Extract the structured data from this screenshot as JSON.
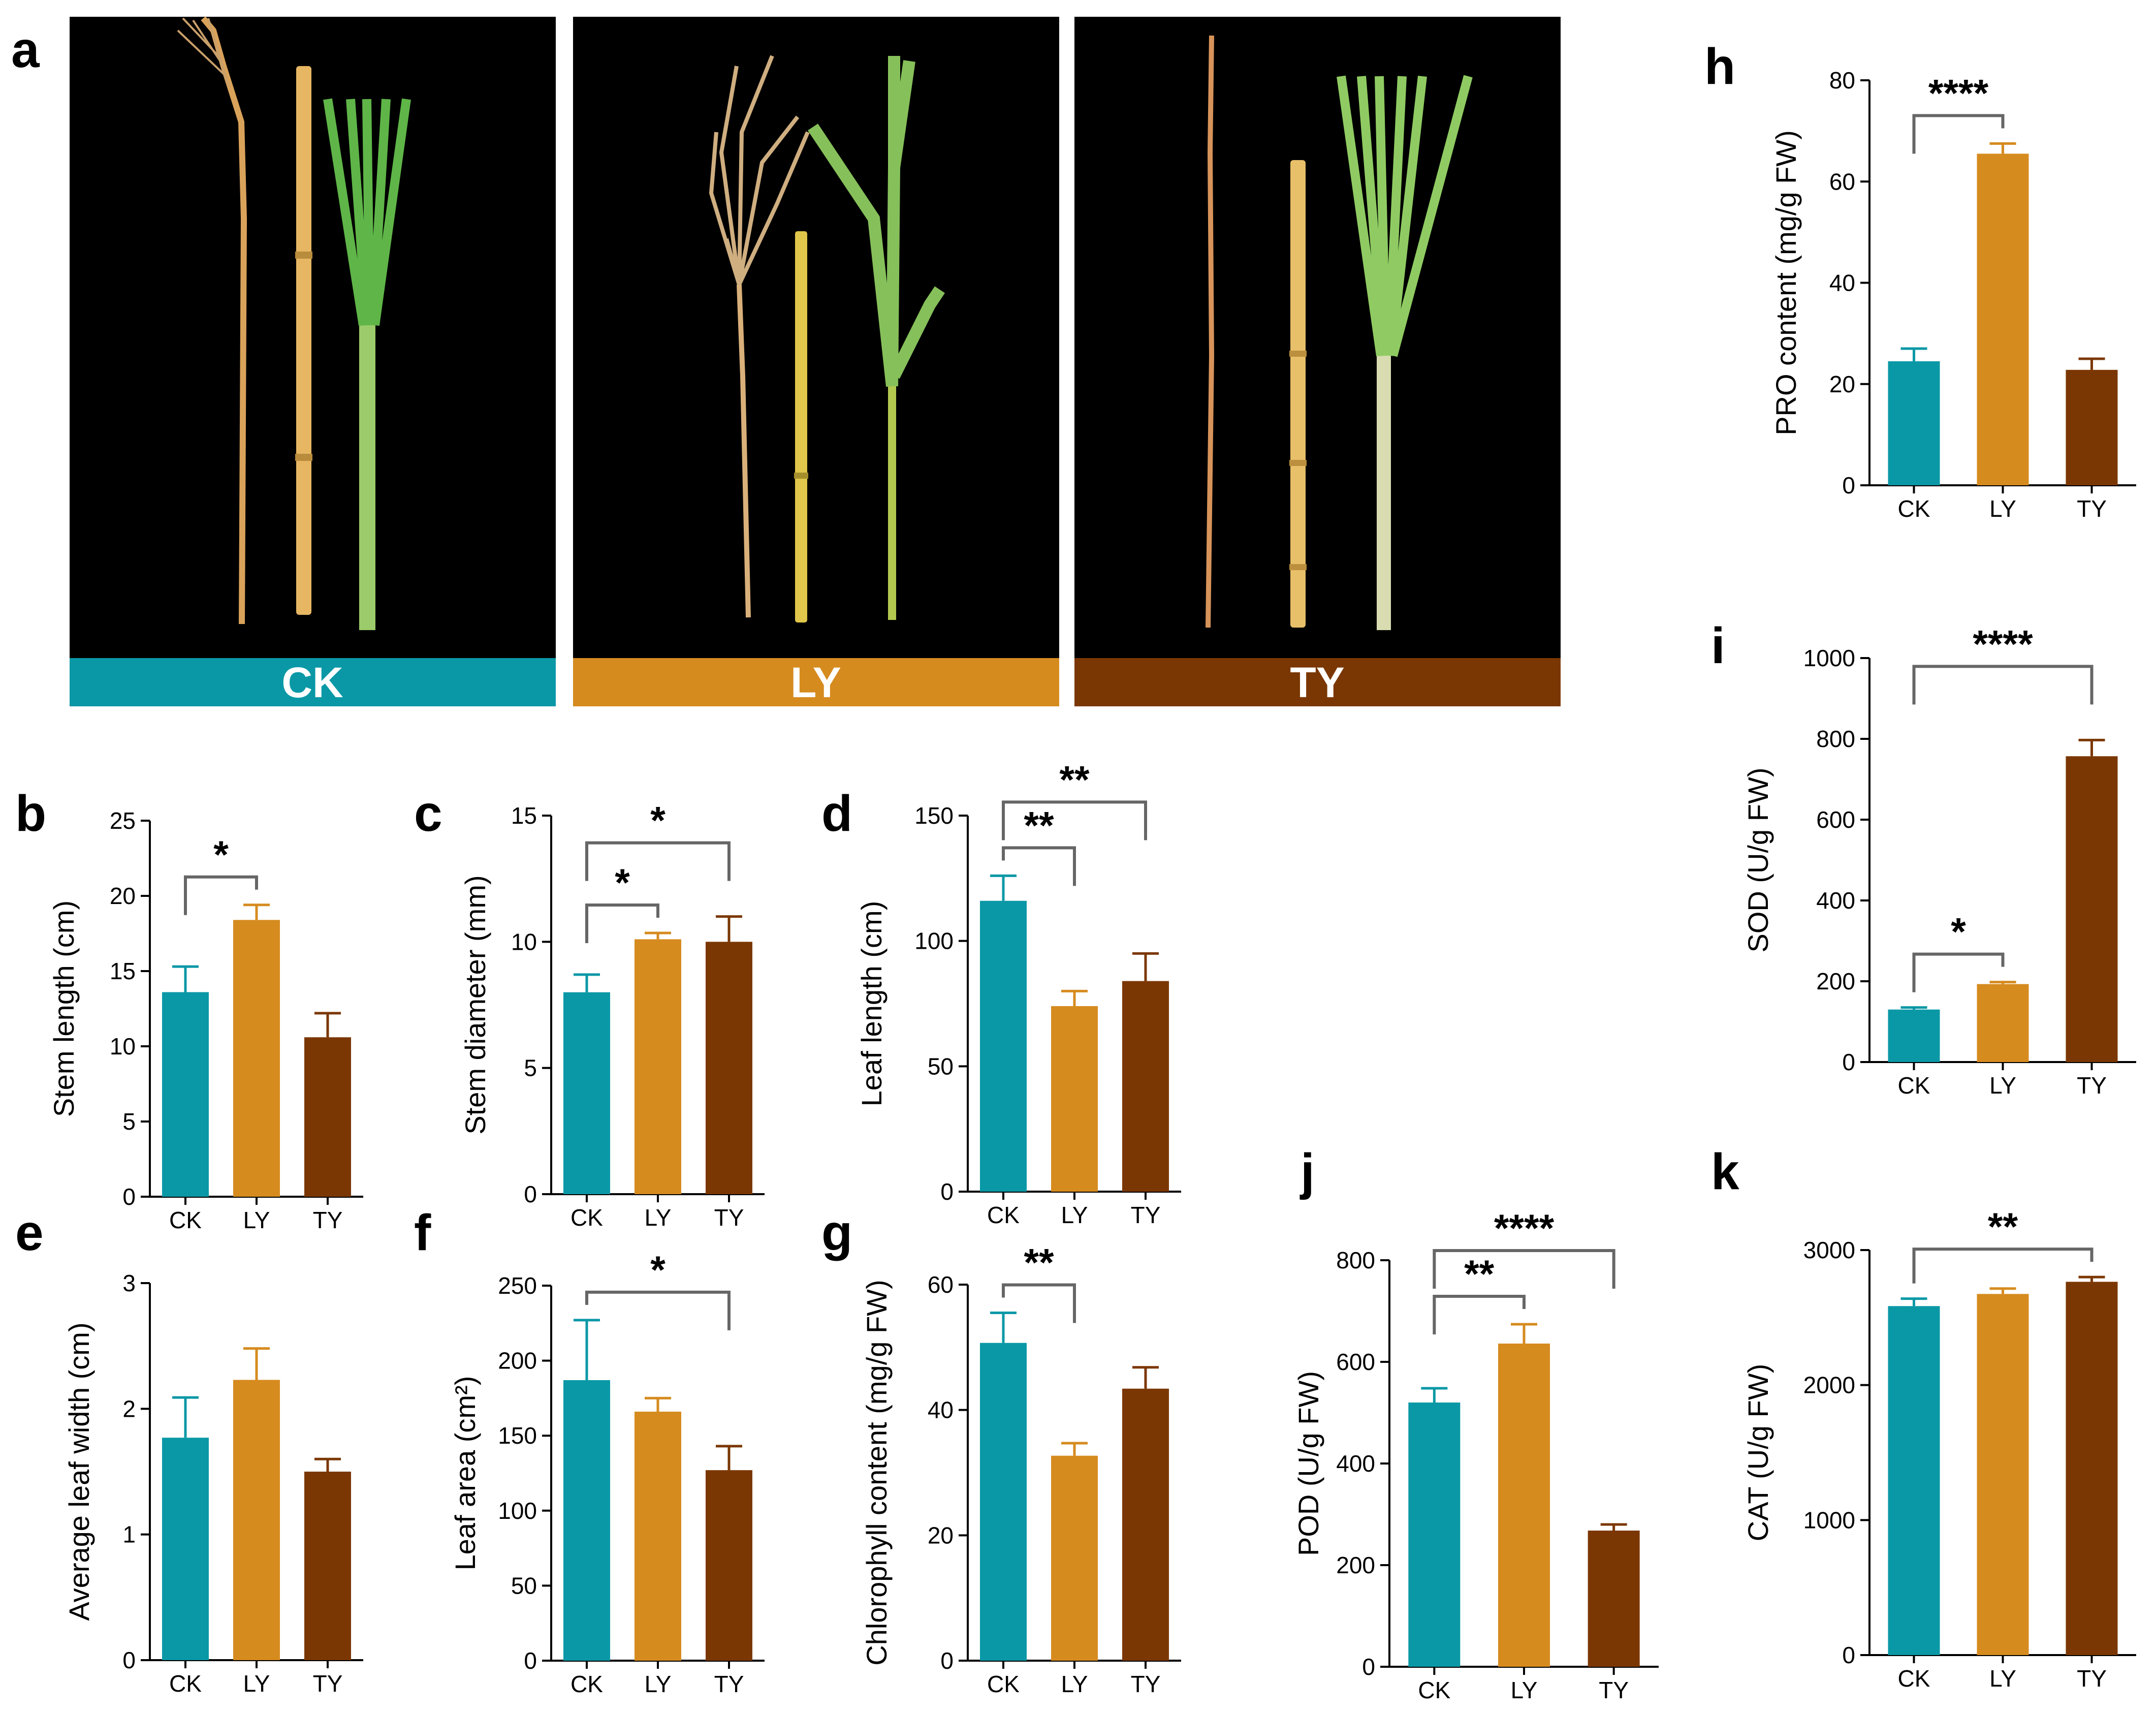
{
  "colors": {
    "CK": "#0a98a6",
    "LY": "#d68b1f",
    "TY": "#7b3703",
    "photo_bg": "#000000"
  },
  "panel_a": {
    "label": "a",
    "photos": [
      {
        "group": "CK",
        "color": "#0a98a6"
      },
      {
        "group": "LY",
        "color": "#d68b1f"
      },
      {
        "group": "TY",
        "color": "#7b3703"
      }
    ]
  },
  "chart_data": [
    {
      "panel": "b",
      "type": "bar",
      "title": "",
      "xlabel": "",
      "ylabel": "Stem length  (cm)",
      "ylim": [
        0,
        25
      ],
      "yticks": [
        0,
        5,
        10,
        15,
        20,
        25
      ],
      "categories": [
        "CK",
        "LY",
        "TY"
      ],
      "values": [
        13.6,
        18.4,
        10.6
      ],
      "errors": [
        1.7,
        1.0,
        1.6
      ],
      "significance": [
        {
          "from": 0,
          "to": 1,
          "label": "*"
        }
      ]
    },
    {
      "panel": "c",
      "type": "bar",
      "title": "",
      "xlabel": "",
      "ylabel": "Stem diameter  (mm)",
      "ylim": [
        0,
        15
      ],
      "yticks": [
        0,
        5,
        10,
        15
      ],
      "categories": [
        "CK",
        "LY",
        "TY"
      ],
      "values": [
        8.0,
        10.1,
        10.0
      ],
      "errors": [
        0.7,
        0.25,
        1.0
      ],
      "significance": [
        {
          "from": 0,
          "to": 1,
          "label": "*"
        },
        {
          "from": 0,
          "to": 2,
          "label": "*"
        }
      ]
    },
    {
      "panel": "d",
      "type": "bar",
      "title": "",
      "xlabel": "",
      "ylabel": "Leaf length (cm)",
      "ylim": [
        0,
        150
      ],
      "yticks": [
        0,
        50,
        100,
        150
      ],
      "categories": [
        "CK",
        "LY",
        "TY"
      ],
      "values": [
        116,
        74,
        84
      ],
      "errors": [
        10,
        6,
        11
      ],
      "significance": [
        {
          "from": 0,
          "to": 1,
          "label": "**"
        },
        {
          "from": 0,
          "to": 2,
          "label": "**"
        }
      ]
    },
    {
      "panel": "e",
      "type": "bar",
      "title": "",
      "xlabel": "",
      "ylabel": "Average leaf width (cm)",
      "ylim": [
        0,
        3
      ],
      "yticks": [
        0,
        1,
        2,
        3
      ],
      "categories": [
        "CK",
        "LY",
        "TY"
      ],
      "values": [
        1.77,
        2.23,
        1.5
      ],
      "errors": [
        0.32,
        0.25,
        0.1
      ],
      "significance": []
    },
    {
      "panel": "f",
      "type": "bar",
      "title": "",
      "xlabel": "",
      "ylabel": "Leaf area (cm²)",
      "ylim": [
        0,
        250
      ],
      "yticks": [
        0,
        50,
        100,
        150,
        200,
        250
      ],
      "categories": [
        "CK",
        "LY",
        "TY"
      ],
      "values": [
        187,
        166,
        127
      ],
      "errors": [
        40,
        9,
        16
      ],
      "significance": [
        {
          "from": 0,
          "to": 2,
          "label": "*"
        }
      ]
    },
    {
      "panel": "g",
      "type": "bar",
      "title": "",
      "xlabel": "",
      "ylabel": "Chlorophyll content  (mg/g FW)",
      "ylim": [
        0,
        60
      ],
      "yticks": [
        0,
        20,
        40,
        60
      ],
      "categories": [
        "CK",
        "LY",
        "TY"
      ],
      "values": [
        50.7,
        32.7,
        43.4
      ],
      "errors": [
        4.8,
        2.0,
        3.4
      ],
      "significance": [
        {
          "from": 0,
          "to": 1,
          "label": "**"
        }
      ]
    },
    {
      "panel": "h",
      "type": "bar",
      "title": "",
      "xlabel": "",
      "ylabel": "PRO content (mg/g FW)",
      "ylim": [
        0,
        80
      ],
      "yticks": [
        0,
        20,
        40,
        60,
        80
      ],
      "categories": [
        "CK",
        "LY",
        "TY"
      ],
      "values": [
        24.5,
        65.5,
        22.8
      ],
      "errors": [
        2.5,
        2.0,
        2.2
      ],
      "significance": [
        {
          "from": 0,
          "to": 1,
          "label": "****"
        }
      ]
    },
    {
      "panel": "i",
      "type": "bar",
      "title": "",
      "xlabel": "",
      "ylabel": "SOD (U/g FW)",
      "ylim": [
        0,
        1000
      ],
      "yticks": [
        0,
        200,
        400,
        600,
        800,
        1000
      ],
      "categories": [
        "CK",
        "LY",
        "TY"
      ],
      "values": [
        130,
        193,
        757
      ],
      "errors": [
        5,
        5,
        40
      ],
      "significance": [
        {
          "from": 0,
          "to": 1,
          "label": "*"
        },
        {
          "from": 0,
          "to": 2,
          "label": "****"
        }
      ]
    },
    {
      "panel": "j",
      "type": "bar",
      "title": "",
      "xlabel": "",
      "ylabel": "POD (U/g FW)",
      "ylim": [
        0,
        800
      ],
      "yticks": [
        0,
        200,
        400,
        600,
        800
      ],
      "categories": [
        "CK",
        "LY",
        "TY"
      ],
      "values": [
        520,
        636,
        268
      ],
      "errors": [
        28,
        38,
        12
      ],
      "significance": [
        {
          "from": 0,
          "to": 1,
          "label": "**"
        },
        {
          "from": 0,
          "to": 2,
          "label": "****"
        }
      ]
    },
    {
      "panel": "k",
      "type": "bar",
      "title": "",
      "xlabel": "",
      "ylabel": "CAT (U/g FW)",
      "ylim": [
        0,
        3000
      ],
      "yticks": [
        0,
        1000,
        2000,
        3000
      ],
      "categories": [
        "CK",
        "LY",
        "TY"
      ],
      "values": [
        2585,
        2675,
        2765
      ],
      "errors": [
        55,
        40,
        35
      ],
      "significance": [
        {
          "from": 0,
          "to": 2,
          "label": "**"
        }
      ]
    }
  ]
}
